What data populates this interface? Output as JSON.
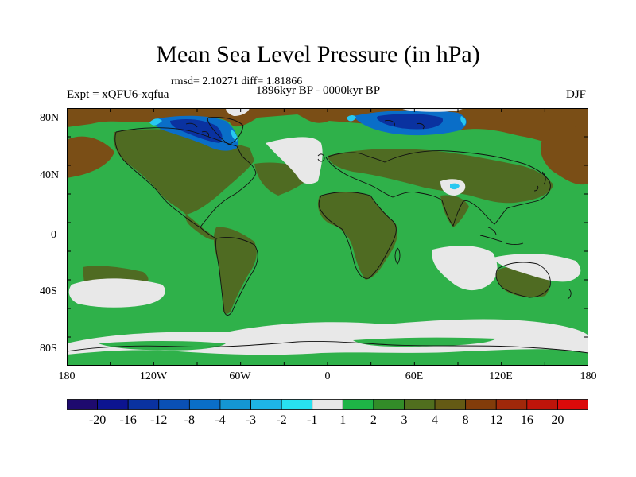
{
  "title": "Mean Sea Level Pressure (in hPa)",
  "stats": "rmsd= 2.10271 diff= 1.81866",
  "period": "1896kyr BP - 0000kyr BP",
  "experiment": "Expt = xQFU6-xqfua",
  "season": "DJF",
  "lat_labels": [
    "80N",
    "40N",
    "0",
    "40S",
    "80S"
  ],
  "lon_labels": [
    "180",
    "120W",
    "60W",
    "0",
    "60E",
    "120E",
    "180"
  ],
  "colorbar": {
    "labels": [
      "-20",
      "-16",
      "-12",
      "-8",
      "-4",
      "-3",
      "-2",
      "-1",
      "1",
      "2",
      "3",
      "4",
      "8",
      "12",
      "16",
      "20"
    ],
    "colors": [
      "#1e0a6e",
      "#0c1490",
      "#0a32a0",
      "#0a50b4",
      "#0a6ec8",
      "#1496d2",
      "#1eb4e6",
      "#28e1f0",
      "#e8e8e8",
      "#1eb446",
      "#328c28",
      "#506e1e",
      "#645a14",
      "#823c0a",
      "#a0280a",
      "#be140a",
      "#dc0a0a"
    ]
  },
  "colors": {
    "background": "#ffffff",
    "ocean_default": "#2fb14a",
    "land": "#4f6b22",
    "light_olive": "#4a7a2a",
    "brown": "#7a4e16",
    "near_zero": "#e8e8e8",
    "blue": "#0a6ec8",
    "dark_blue": "#0a32a0",
    "cyan": "#28c8f0",
    "coast": "#111111"
  }
}
